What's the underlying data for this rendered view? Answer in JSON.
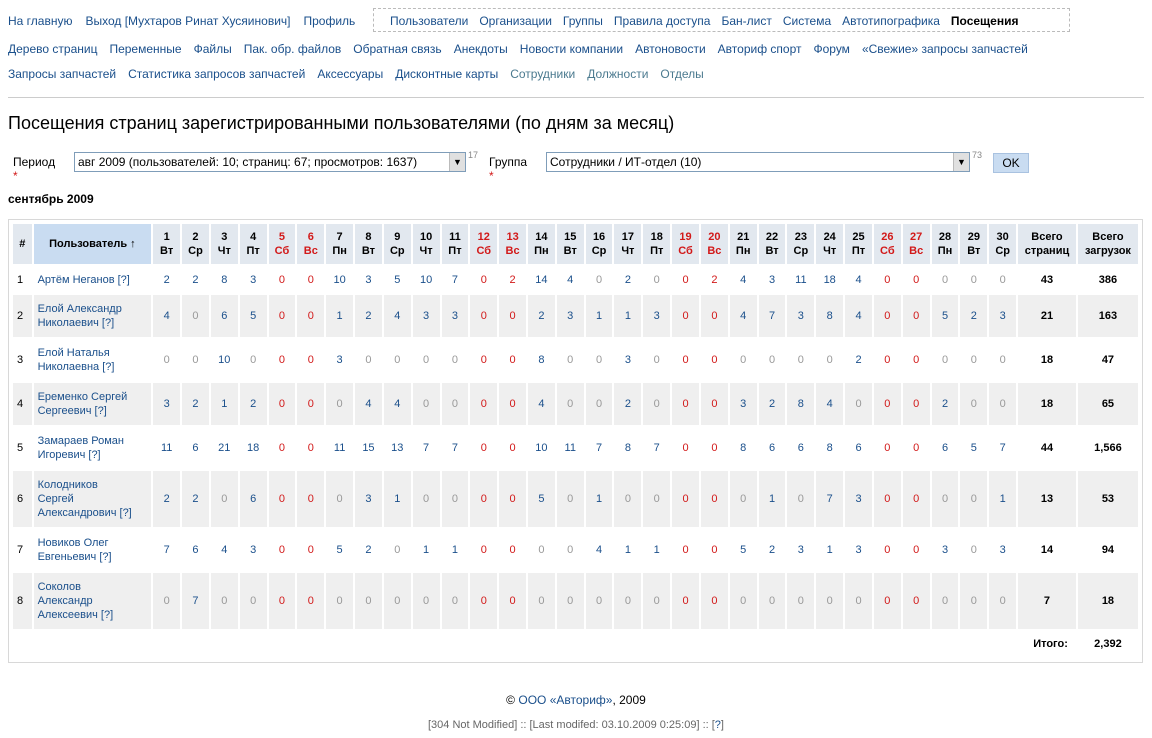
{
  "nav": {
    "left": [
      "На главную",
      "Выход [Мухтаров Ринат Хусяинович]",
      "Профиль"
    ],
    "boxed": [
      "Пользователи",
      "Организации",
      "Группы",
      "Правила доступа",
      "Бан-лист",
      "Система",
      "Автотипографика"
    ],
    "current": "Посещения",
    "row2": [
      "Дерево страниц",
      "Переменные",
      "Файлы",
      "Пак. обр. файлов",
      "Обратная связь",
      "Анекдоты",
      "Новости компании",
      "Автоновости",
      "Авториф спорт",
      "Форум",
      "«Свежие» запросы запчастей"
    ],
    "row3": [
      "Запросы запчастей",
      "Статистика запросов запчастей",
      "Аксессуары",
      "Дисконтные карты"
    ],
    "row3_muted": [
      "Сотрудники",
      "Должности",
      "Отделы"
    ]
  },
  "title": "Посещения страниц зарегистрированными пользователями (по дням за месяц)",
  "filters": {
    "period_label": "Период",
    "period_value": "авг 2009 (пользователей: 10; страниц: 67; просмотров: 1637)",
    "period_count": "17",
    "group_label": "Группа",
    "group_value": "Сотрудники / ИТ-отдел (10)",
    "group_count": "73",
    "ok": "OK"
  },
  "month": "сентябрь 2009",
  "table": {
    "h_idx": "#",
    "h_user": "Пользователь ↑",
    "h_pages": [
      "Всего",
      "страниц"
    ],
    "h_loads": [
      "Всего",
      "загрузок"
    ],
    "days": [
      [
        "1",
        "Вт",
        false
      ],
      [
        "2",
        "Ср",
        false
      ],
      [
        "3",
        "Чт",
        false
      ],
      [
        "4",
        "Пт",
        false
      ],
      [
        "5",
        "Сб",
        true
      ],
      [
        "6",
        "Вс",
        true
      ],
      [
        "7",
        "Пн",
        false
      ],
      [
        "8",
        "Вт",
        false
      ],
      [
        "9",
        "Ср",
        false
      ],
      [
        "10",
        "Чт",
        false
      ],
      [
        "11",
        "Пт",
        false
      ],
      [
        "12",
        "Сб",
        true
      ],
      [
        "13",
        "Вс",
        true
      ],
      [
        "14",
        "Пн",
        false
      ],
      [
        "15",
        "Вт",
        false
      ],
      [
        "16",
        "Ср",
        false
      ],
      [
        "17",
        "Чт",
        false
      ],
      [
        "18",
        "Пт",
        false
      ],
      [
        "19",
        "Сб",
        true
      ],
      [
        "20",
        "Вс",
        true
      ],
      [
        "21",
        "Пн",
        false
      ],
      [
        "22",
        "Вт",
        false
      ],
      [
        "23",
        "Ср",
        false
      ],
      [
        "24",
        "Чт",
        false
      ],
      [
        "25",
        "Пт",
        false
      ],
      [
        "26",
        "Сб",
        true
      ],
      [
        "27",
        "Вс",
        true
      ],
      [
        "28",
        "Пн",
        false
      ],
      [
        "29",
        "Вт",
        false
      ],
      [
        "30",
        "Ср",
        false
      ]
    ],
    "rows": [
      {
        "n": "1",
        "name": [
          "Артём Неганов [?]"
        ],
        "vals": [
          2,
          2,
          8,
          3,
          0,
          0,
          10,
          3,
          5,
          10,
          7,
          0,
          2,
          14,
          4,
          0,
          2,
          0,
          0,
          2,
          4,
          3,
          11,
          18,
          4,
          0,
          0,
          0,
          0,
          0
        ],
        "pages": "43",
        "loads": "386"
      },
      {
        "n": "2",
        "name": [
          "Елой Александр",
          "Николаевич [?]"
        ],
        "vals": [
          4,
          0,
          6,
          5,
          0,
          0,
          1,
          2,
          4,
          3,
          3,
          0,
          0,
          2,
          3,
          1,
          1,
          3,
          0,
          0,
          4,
          7,
          3,
          8,
          4,
          0,
          0,
          5,
          2,
          3
        ],
        "pages": "21",
        "loads": "163"
      },
      {
        "n": "3",
        "name": [
          "Елой Наталья",
          "Николаевна [?]"
        ],
        "vals": [
          0,
          0,
          10,
          0,
          0,
          0,
          3,
          0,
          0,
          0,
          0,
          0,
          0,
          8,
          0,
          0,
          3,
          0,
          0,
          0,
          0,
          0,
          0,
          0,
          2,
          0,
          0,
          0,
          0,
          0
        ],
        "pages": "18",
        "loads": "47"
      },
      {
        "n": "4",
        "name": [
          "Еременко Сергей",
          "Сергеевич [?]"
        ],
        "vals": [
          3,
          2,
          1,
          2,
          0,
          0,
          0,
          4,
          4,
          0,
          0,
          0,
          0,
          4,
          0,
          0,
          2,
          0,
          0,
          0,
          3,
          2,
          8,
          4,
          0,
          0,
          0,
          2,
          0,
          0
        ],
        "pages": "18",
        "loads": "65"
      },
      {
        "n": "5",
        "name": [
          "Замараев Роман",
          "Игоревич [?]"
        ],
        "vals": [
          11,
          6,
          21,
          18,
          0,
          0,
          11,
          15,
          13,
          7,
          7,
          0,
          0,
          10,
          11,
          7,
          8,
          7,
          0,
          0,
          8,
          6,
          6,
          8,
          6,
          0,
          0,
          6,
          5,
          7
        ],
        "pages": "44",
        "loads": "1,566"
      },
      {
        "n": "6",
        "name": [
          "Колодников",
          "Сергей",
          "Александрович [?]"
        ],
        "vals": [
          2,
          2,
          0,
          6,
          0,
          0,
          0,
          3,
          1,
          0,
          0,
          0,
          0,
          5,
          0,
          1,
          0,
          0,
          0,
          0,
          0,
          1,
          0,
          7,
          3,
          0,
          0,
          0,
          0,
          1
        ],
        "pages": "13",
        "loads": "53"
      },
      {
        "n": "7",
        "name": [
          "Новиков Олег",
          "Евгеньевич [?]"
        ],
        "vals": [
          7,
          6,
          4,
          3,
          0,
          0,
          5,
          2,
          0,
          1,
          1,
          0,
          0,
          0,
          0,
          4,
          1,
          1,
          0,
          0,
          5,
          2,
          3,
          1,
          3,
          0,
          0,
          3,
          0,
          3
        ],
        "pages": "14",
        "loads": "94"
      },
      {
        "n": "8",
        "name": [
          "Соколов",
          "Александр",
          "Алексеевич [?]"
        ],
        "vals": [
          0,
          7,
          0,
          0,
          0,
          0,
          0,
          0,
          0,
          0,
          0,
          0,
          0,
          0,
          0,
          0,
          0,
          0,
          0,
          0,
          0,
          0,
          0,
          0,
          0,
          0,
          0,
          0,
          0,
          0
        ],
        "pages": "7",
        "loads": "18"
      }
    ],
    "total_label": "Итого:",
    "total_value": "2,392"
  },
  "footer": {
    "copy": "©",
    "company": "ООО «Авториф»",
    "year": ", 2009",
    "status": "[304 Not Modified] :: [Last modifed: 03.10.2009 0:25:09] :: [",
    "help": "?",
    "status_end": "]"
  },
  "colors": {
    "link": "#1a4f8b",
    "weekend": "#d21919",
    "zero": "#999999",
    "header": "#e2e8ef"
  }
}
